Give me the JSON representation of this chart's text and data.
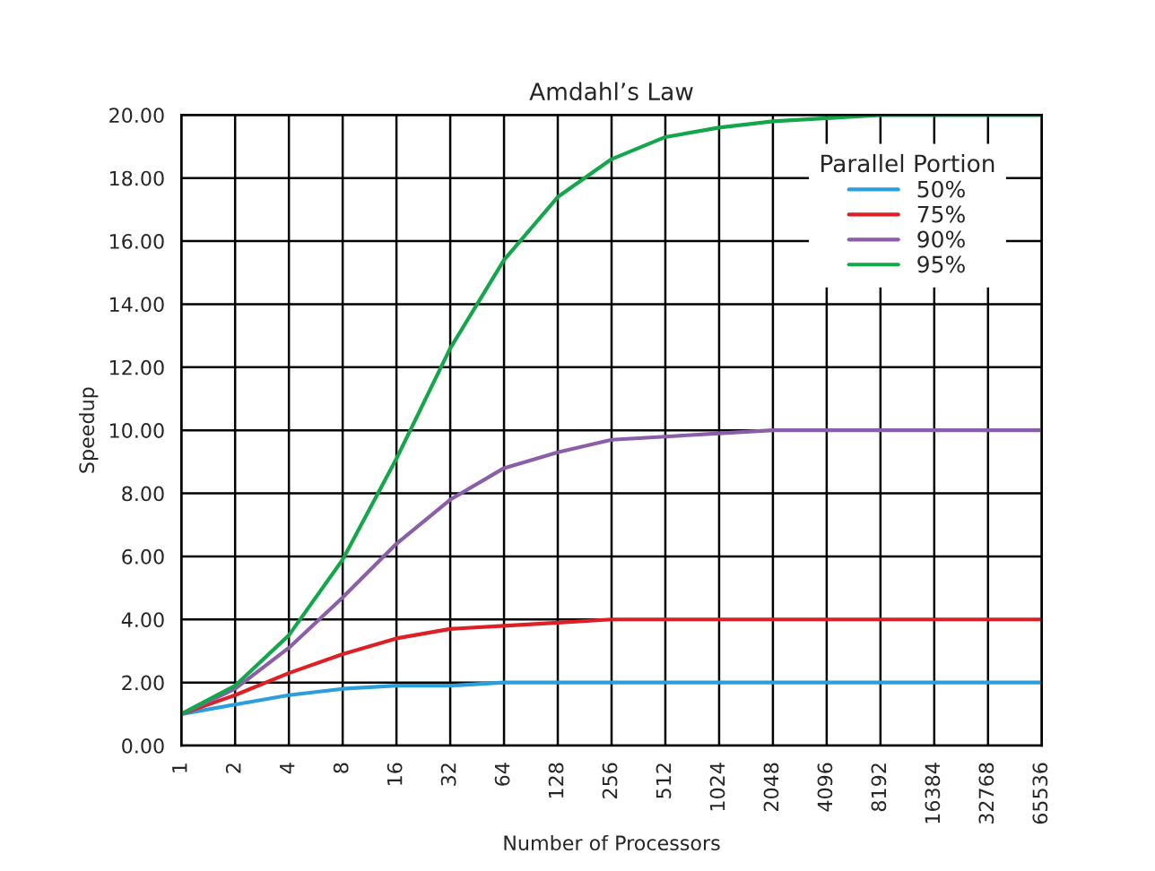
{
  "chart_data": {
    "type": "line",
    "title": "Amdahl’s Law",
    "xlabel": "Number of Processors",
    "ylabel": "Speedup",
    "legend_title": "Parallel Portion",
    "categories": [
      "1",
      "2",
      "4",
      "8",
      "16",
      "32",
      "64",
      "128",
      "256",
      "512",
      "1024",
      "2048",
      "4096",
      "8192",
      "16384",
      "32768",
      "65536"
    ],
    "series": [
      {
        "name": "50%",
        "color": "#2b9fdc",
        "values": [
          1.0,
          1.3,
          1.6,
          1.8,
          1.9,
          1.9,
          2.0,
          2.0,
          2.0,
          2.0,
          2.0,
          2.0,
          2.0,
          2.0,
          2.0,
          2.0,
          2.0
        ]
      },
      {
        "name": "75%",
        "color": "#dd1f26",
        "values": [
          1.0,
          1.6,
          2.3,
          2.9,
          3.4,
          3.7,
          3.8,
          3.9,
          4.0,
          4.0,
          4.0,
          4.0,
          4.0,
          4.0,
          4.0,
          4.0,
          4.0
        ]
      },
      {
        "name": "90%",
        "color": "#8a5ea8",
        "values": [
          1.0,
          1.8,
          3.1,
          4.7,
          6.4,
          7.8,
          8.8,
          9.3,
          9.7,
          9.8,
          9.9,
          10.0,
          10.0,
          10.0,
          10.0,
          10.0,
          10.0
        ]
      },
      {
        "name": "95%",
        "color": "#13a64b",
        "values": [
          1.0,
          1.9,
          3.5,
          5.9,
          9.1,
          12.6,
          15.4,
          17.4,
          18.6,
          19.3,
          19.6,
          19.8,
          19.9,
          20.0,
          20.0,
          20.0,
          20.0
        ]
      }
    ],
    "ylim": [
      0,
      20
    ],
    "yticks": [
      {
        "value": 0,
        "label": "0.00"
      },
      {
        "value": 2,
        "label": "2.00"
      },
      {
        "value": 4,
        "label": "4.00"
      },
      {
        "value": 6,
        "label": "6.00"
      },
      {
        "value": 8,
        "label": "8.00"
      },
      {
        "value": 10,
        "label": "10.00"
      },
      {
        "value": 12,
        "label": "12.00"
      },
      {
        "value": 14,
        "label": "14.00"
      },
      {
        "value": 16,
        "label": "16.00"
      },
      {
        "value": 18,
        "label": "18.00"
      },
      {
        "value": 20,
        "label": "20.00"
      }
    ],
    "grid": true,
    "legend": "top right",
    "marker": "none",
    "line_style": "solid"
  }
}
